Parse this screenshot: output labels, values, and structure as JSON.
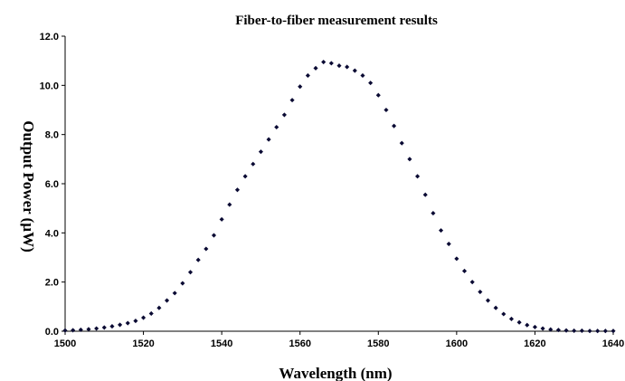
{
  "chart_data": {
    "type": "scatter",
    "title": "Fiber-to-fiber measurement results",
    "xlabel": "Wavelength (nm)",
    "ylabel": "Output Power (µW)",
    "xlim": [
      1500,
      1640
    ],
    "ylim": [
      0,
      12
    ],
    "x_ticks": [
      "1500",
      "1520",
      "1540",
      "1560",
      "1580",
      "1600",
      "1620",
      "1640"
    ],
    "y_ticks": [
      "0.0",
      "2.0",
      "4.0",
      "6.0",
      "8.0",
      "10.0",
      "12.0"
    ],
    "grid": false,
    "legend": "none",
    "marker_color": "#0a0a33",
    "series": [
      {
        "x": [
          1500,
          1502,
          1504,
          1506,
          1508,
          1510,
          1512,
          1514,
          1516,
          1518,
          1520,
          1522,
          1524,
          1526,
          1528,
          1530,
          1532,
          1534,
          1536,
          1538,
          1540,
          1542,
          1544,
          1546,
          1548,
          1550,
          1552,
          1554,
          1556,
          1558,
          1560,
          1562,
          1564,
          1566,
          1568,
          1570,
          1572,
          1574,
          1576,
          1578,
          1580,
          1582,
          1584,
          1586,
          1588,
          1590,
          1592,
          1594,
          1596,
          1598,
          1600,
          1602,
          1604,
          1606,
          1608,
          1610,
          1612,
          1614,
          1616,
          1618,
          1620,
          1622,
          1624,
          1626,
          1628,
          1630,
          1632,
          1634,
          1636,
          1638,
          1640
        ],
        "y": [
          0.03,
          0.04,
          0.06,
          0.08,
          0.11,
          0.15,
          0.2,
          0.26,
          0.33,
          0.42,
          0.55,
          0.72,
          0.95,
          1.25,
          1.55,
          1.95,
          2.4,
          2.9,
          3.35,
          3.9,
          4.55,
          5.15,
          5.75,
          6.3,
          6.8,
          7.3,
          7.8,
          8.3,
          8.8,
          9.4,
          9.95,
          10.4,
          10.7,
          10.95,
          10.9,
          10.8,
          10.75,
          10.6,
          10.4,
          10.1,
          9.6,
          9.0,
          8.35,
          7.65,
          7.0,
          6.3,
          5.55,
          4.8,
          4.1,
          3.55,
          2.95,
          2.45,
          2.0,
          1.6,
          1.25,
          0.95,
          0.7,
          0.5,
          0.36,
          0.25,
          0.17,
          0.11,
          0.07,
          0.05,
          0.03,
          0.02,
          0.02,
          0.01,
          0.01,
          0.01,
          0.01
        ]
      }
    ]
  }
}
